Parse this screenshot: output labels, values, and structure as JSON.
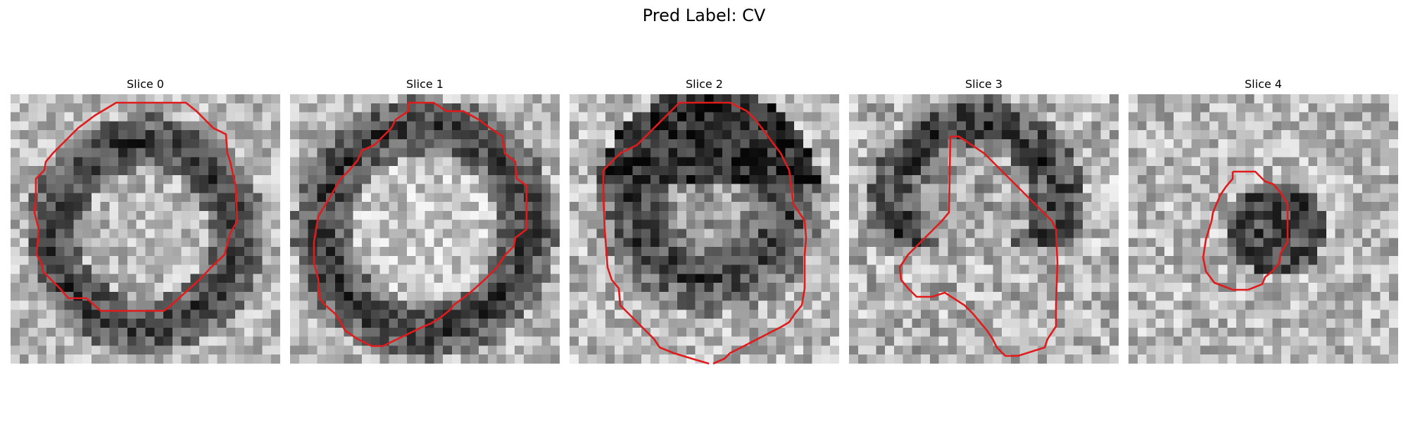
{
  "figure": {
    "title": "Pred Label: CV",
    "colormap": "grayscale",
    "contour_color": "#e11b1b"
  },
  "slices": [
    {
      "title": "Slice 0"
    },
    {
      "title": "Slice 1"
    },
    {
      "title": "Slice 2"
    },
    {
      "title": "Slice 3"
    },
    {
      "title": "Slice 4"
    }
  ]
}
